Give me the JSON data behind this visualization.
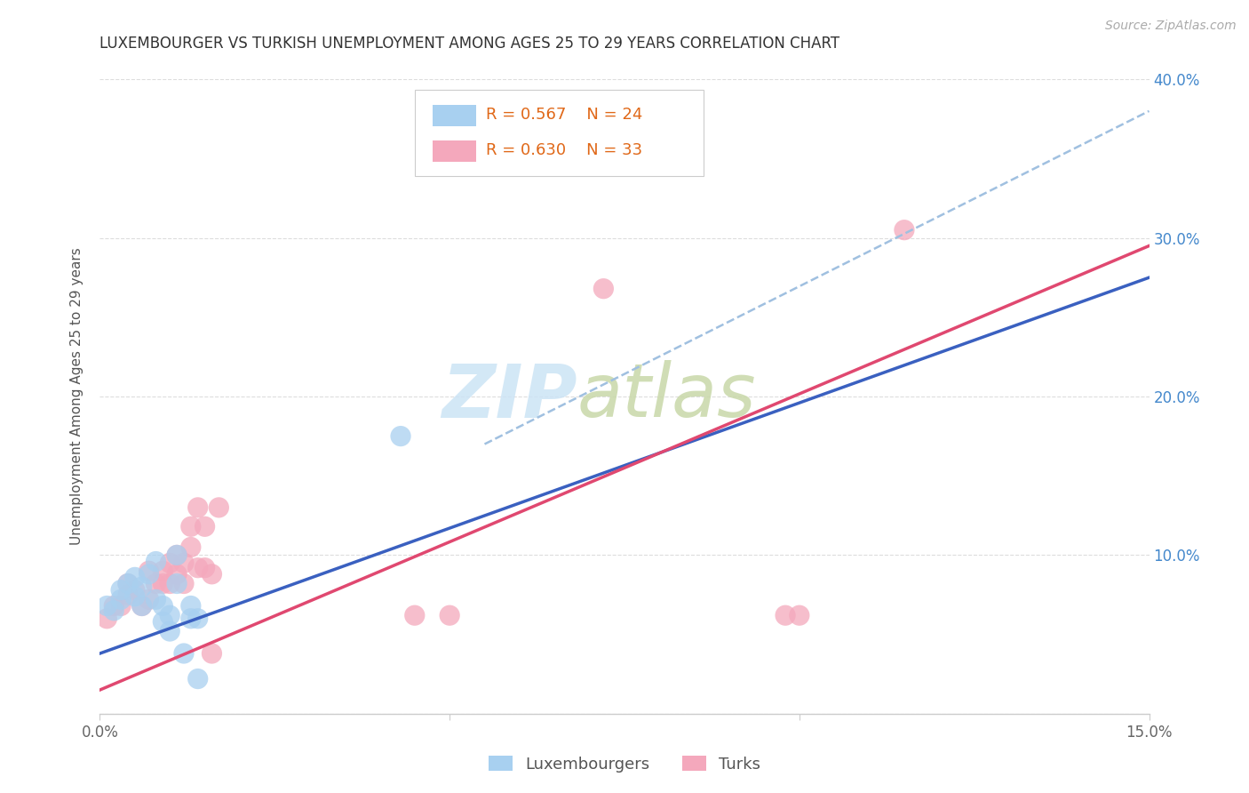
{
  "title": "LUXEMBOURGER VS TURKISH UNEMPLOYMENT AMONG AGES 25 TO 29 YEARS CORRELATION CHART",
  "source": "Source: ZipAtlas.com",
  "ylabel": "Unemployment Among Ages 25 to 29 years",
  "xlim": [
    0.0,
    0.15
  ],
  "ylim": [
    0.0,
    0.4
  ],
  "xticks": [
    0.0,
    0.05,
    0.1,
    0.15
  ],
  "xtick_labels": [
    "0.0%",
    "",
    "",
    "15.0%"
  ],
  "yticks": [
    0.0,
    0.1,
    0.2,
    0.3,
    0.4
  ],
  "ytick_labels_right": [
    "",
    "10.0%",
    "20.0%",
    "30.0%",
    "40.0%"
  ],
  "legend_labels": [
    "Luxembourgers",
    "Turks"
  ],
  "lux_R": "R = 0.567",
  "lux_N": "N = 24",
  "turk_R": "R = 0.630",
  "turk_N": "N = 33",
  "lux_color": "#a8d0f0",
  "turk_color": "#f4a8bc",
  "lux_line_color": "#3a60c0",
  "turk_line_color": "#e04870",
  "blue_dash_color": "#a0c0e0",
  "legend_text_color": "#e06818",
  "ytick_color": "#4488cc",
  "background_color": "#ffffff",
  "lux_scatter_x": [
    0.001,
    0.002,
    0.003,
    0.003,
    0.004,
    0.005,
    0.005,
    0.006,
    0.006,
    0.007,
    0.008,
    0.008,
    0.009,
    0.009,
    0.01,
    0.01,
    0.011,
    0.011,
    0.012,
    0.013,
    0.013,
    0.014,
    0.014,
    0.043
  ],
  "lux_scatter_y": [
    0.068,
    0.065,
    0.078,
    0.072,
    0.082,
    0.086,
    0.074,
    0.068,
    0.08,
    0.088,
    0.072,
    0.096,
    0.068,
    0.058,
    0.062,
    0.052,
    0.1,
    0.082,
    0.038,
    0.068,
    0.06,
    0.022,
    0.06,
    0.175
  ],
  "turk_scatter_x": [
    0.001,
    0.002,
    0.003,
    0.004,
    0.004,
    0.005,
    0.006,
    0.007,
    0.007,
    0.008,
    0.009,
    0.009,
    0.01,
    0.01,
    0.011,
    0.011,
    0.012,
    0.012,
    0.013,
    0.013,
    0.014,
    0.014,
    0.015,
    0.015,
    0.016,
    0.016,
    0.017,
    0.045,
    0.05,
    0.072,
    0.098,
    0.1,
    0.115
  ],
  "turk_scatter_y": [
    0.06,
    0.068,
    0.068,
    0.075,
    0.082,
    0.078,
    0.068,
    0.072,
    0.09,
    0.082,
    0.09,
    0.082,
    0.095,
    0.082,
    0.1,
    0.088,
    0.095,
    0.082,
    0.105,
    0.118,
    0.13,
    0.092,
    0.118,
    0.092,
    0.088,
    0.038,
    0.13,
    0.062,
    0.062,
    0.268,
    0.062,
    0.062,
    0.305
  ],
  "lux_line_x": [
    0.0,
    0.15
  ],
  "lux_line_y": [
    0.038,
    0.275
  ],
  "turk_line_x": [
    0.0,
    0.15
  ],
  "turk_line_y": [
    0.015,
    0.295
  ],
  "blue_dash_line_x": [
    0.055,
    0.15
  ],
  "blue_dash_line_y": [
    0.17,
    0.38
  ]
}
